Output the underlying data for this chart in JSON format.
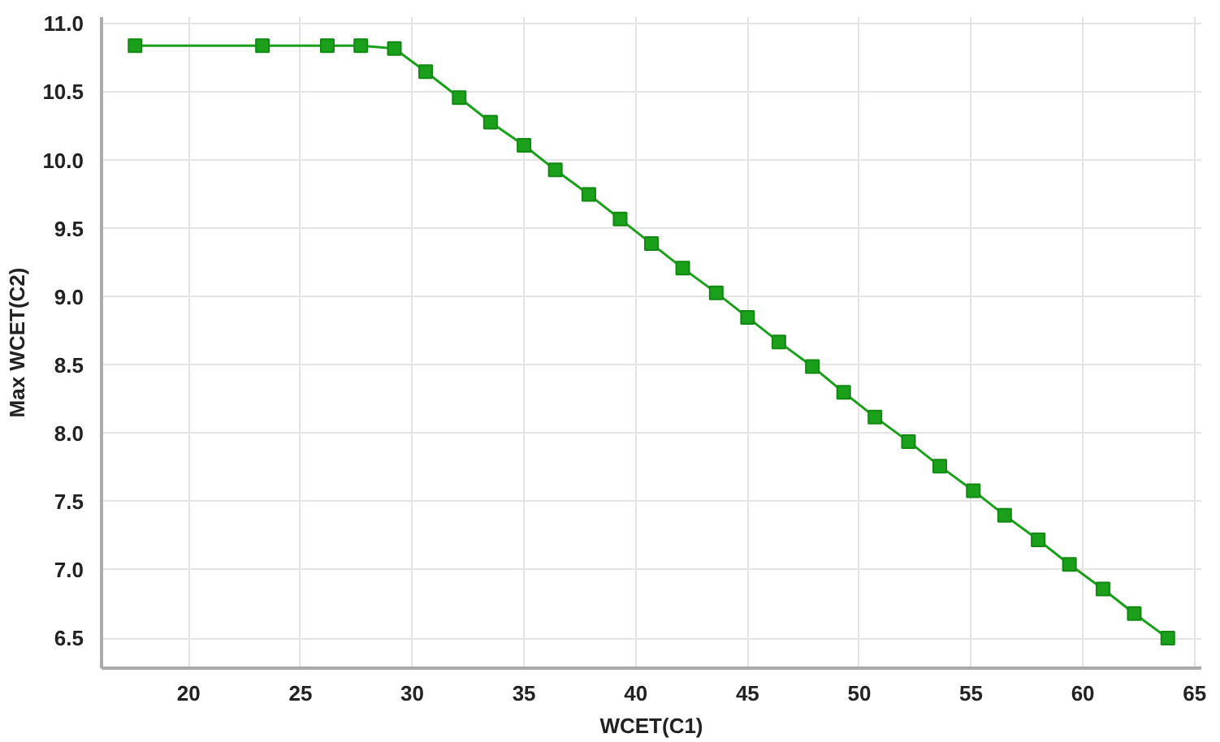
{
  "chart_data": {
    "type": "line",
    "xlabel": "WCET(C1)",
    "ylabel": "Max WCET(C2)",
    "xlim": [
      16.1,
      65.3
    ],
    "xticks": [
      20,
      25,
      30,
      35,
      40,
      45,
      50,
      55,
      60,
      65
    ],
    "ylim": [
      6.28,
      11.05
    ],
    "yticks": [
      {
        "value": 6.5,
        "label": "6.5"
      },
      {
        "value": 7,
        "label": "7.0"
      },
      {
        "value": 7.5,
        "label": "7.5"
      },
      {
        "value": 8,
        "label": "8.0"
      },
      {
        "value": 8.5,
        "label": "8.5"
      },
      {
        "value": 9,
        "label": "9.0"
      },
      {
        "value": 9.5,
        "label": "9.5"
      },
      {
        "value": 10,
        "label": "10.0"
      },
      {
        "value": 10.5,
        "label": "10.5"
      },
      {
        "value": 11,
        "label": "11.0"
      }
    ],
    "grid": true,
    "marker": "square",
    "line_style": "solid",
    "series": [
      {
        "color": "#1aa01a",
        "x": [
          17.6,
          23.3,
          26.2,
          27.7,
          29.2,
          30.6,
          32.1,
          33.5,
          35.0,
          36.4,
          37.9,
          39.3,
          40.7,
          42.1,
          43.6,
          45.0,
          46.4,
          47.9,
          49.3,
          50.7,
          52.2,
          53.6,
          55.1,
          56.5,
          58.0,
          59.4,
          60.9,
          62.3,
          63.8
        ],
        "values": [
          10.84,
          10.84,
          10.84,
          10.84,
          10.82,
          10.65,
          10.46,
          10.28,
          10.11,
          9.93,
          9.75,
          9.57,
          9.39,
          9.21,
          9.03,
          8.85,
          8.67,
          8.49,
          8.3,
          8.12,
          7.94,
          7.76,
          7.58,
          7.4,
          7.22,
          7.04,
          6.86,
          6.68,
          6.5
        ]
      }
    ]
  }
}
